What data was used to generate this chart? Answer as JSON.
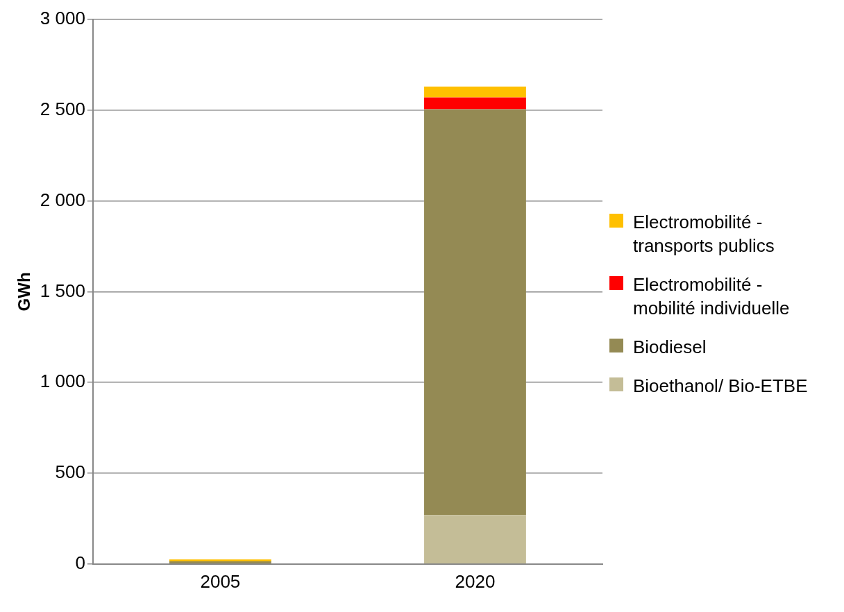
{
  "chart_data": {
    "type": "bar",
    "stacked": true,
    "categories": [
      "2005",
      "2020"
    ],
    "ylabel": "GWh",
    "series": [
      {
        "name": "Bioethanol/ Bio-ETBE",
        "color": "#c4bd97",
        "values": [
          0,
          270
        ]
      },
      {
        "name": "Biodiesel",
        "color": "#948a54",
        "values": [
          15,
          2235
        ]
      },
      {
        "name": "Electromobilité - mobilité individuelle",
        "color": "#ff0000",
        "values": [
          0,
          65
        ]
      },
      {
        "name": "Electromobilité - transports publics",
        "color": "#ffc000",
        "values": [
          10,
          60
        ]
      }
    ],
    "ylim": [
      0,
      3000
    ],
    "yticks": [
      0,
      500,
      {
        "value": 1000,
        "label": "1 000"
      },
      {
        "value": 1500,
        "label": "1 500"
      },
      {
        "value": 2000,
        "label": "2 000"
      },
      {
        "value": 2500,
        "label": "2 500"
      },
      {
        "value": 3000,
        "label": "3 000"
      }
    ],
    "grid": "y",
    "legend": "right"
  }
}
